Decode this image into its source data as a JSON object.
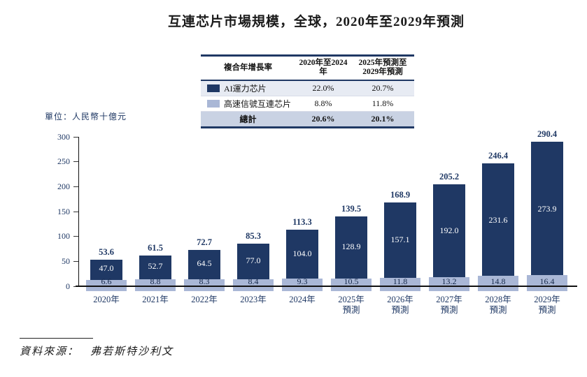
{
  "title": "互連芯片市場規模，全球，2020年至2029年預測",
  "unit_label": "單位：人民幣十億元",
  "source": {
    "prefix": "資料來源：",
    "text": "弗若斯特沙利文"
  },
  "legend_table": {
    "col_headers": [
      "複合年增長率",
      "2020年至2024年",
      [
        "2025年預測至",
        "2029年預測"
      ]
    ],
    "rows": [
      {
        "swatch_color": "#1f3864",
        "label": "AI運力芯片",
        "cagr_2020_2024": "22.0%",
        "cagr_2025_2029": "20.7%"
      },
      {
        "swatch_color": "#a9b7d6",
        "label": "高速信號互連芯片",
        "cagr_2020_2024": "8.8%",
        "cagr_2025_2029": "11.8%"
      }
    ],
    "total_row": {
      "label": "總計",
      "cagr_2020_2024": "20.6%",
      "cagr_2025_2029": "20.1%"
    }
  },
  "chart_data": {
    "type": "bar",
    "stacked": true,
    "title": "互連芯片市場規模，全球，2020年至2029年預測",
    "ylabel": "單位：人民幣十億元",
    "ylim": [
      0,
      300
    ],
    "yticks": [
      0,
      50,
      100,
      150,
      200,
      250,
      300
    ],
    "grid": false,
    "legend_position": "table-top",
    "categories": [
      [
        "2020年"
      ],
      [
        "2021年"
      ],
      [
        "2022年"
      ],
      [
        "2023年"
      ],
      [
        "2024年"
      ],
      [
        "2025年",
        "預測"
      ],
      [
        "2026年",
        "預測"
      ],
      [
        "2027年",
        "預測"
      ],
      [
        "2028年",
        "預測"
      ],
      [
        "2029年",
        "預測"
      ]
    ],
    "series": [
      {
        "name": "AI運力芯片",
        "color": "#1f3864",
        "values": [
          47.0,
          52.7,
          64.5,
          77.0,
          104.0,
          128.9,
          157.1,
          192.0,
          231.6,
          273.9
        ]
      },
      {
        "name": "高速信號互連芯片",
        "color": "#a9b7d6",
        "values": [
          6.6,
          8.8,
          8.3,
          8.4,
          9.3,
          10.5,
          11.8,
          13.2,
          14.8,
          16.4
        ]
      }
    ],
    "totals": [
      53.6,
      61.5,
      72.7,
      85.3,
      113.3,
      139.5,
      168.9,
      205.2,
      246.4,
      290.4
    ]
  }
}
